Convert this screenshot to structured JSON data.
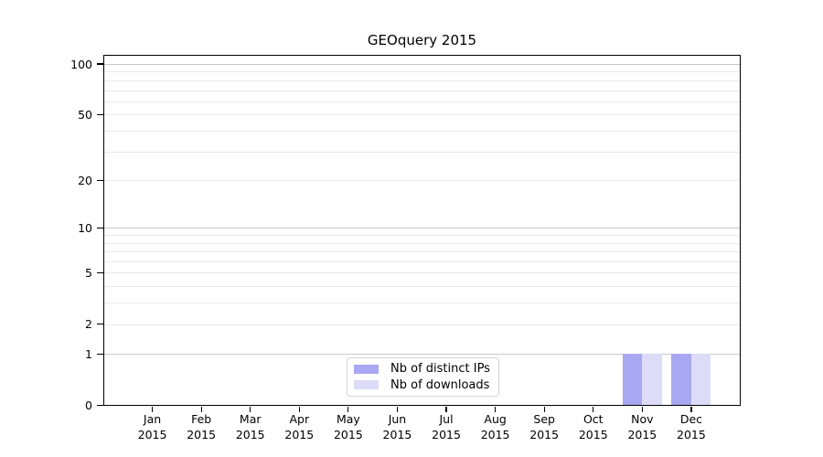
{
  "chart_data": {
    "type": "bar",
    "title": "GEOquery 2015",
    "x_year": "2015",
    "categories": [
      "Jan",
      "Feb",
      "Mar",
      "Apr",
      "May",
      "Jun",
      "Jul",
      "Aug",
      "Sep",
      "Oct",
      "Nov",
      "Dec"
    ],
    "series": [
      {
        "name": "Nb of distinct IPs",
        "color": "#a8a8f2",
        "values": [
          0,
          0,
          0,
          0,
          0,
          0,
          0,
          0,
          0,
          0,
          1,
          1
        ]
      },
      {
        "name": "Nb of downloads",
        "color": "#dcdcf8",
        "values": [
          0,
          0,
          0,
          0,
          0,
          0,
          0,
          0,
          0,
          0,
          1,
          1
        ]
      }
    ],
    "y_axis": {
      "scale": "log1p",
      "major_ticks": [
        0,
        1,
        2,
        5,
        10,
        20,
        50,
        100
      ],
      "minor_ticks": [
        3,
        4,
        6,
        7,
        8,
        9,
        30,
        40,
        60,
        70,
        80,
        90
      ],
      "emphasized_gridlines": [
        1,
        10,
        100
      ],
      "ylim": [
        0,
        113
      ]
    },
    "x_axis": {
      "gridlines": false
    },
    "legend": {
      "position": "bottom-center"
    },
    "grid": "horizontal-only",
    "colors": {
      "major_grid": "#c8c8c8",
      "minor_grid": "#e9e9e9",
      "spine": "#000000",
      "background": "#ffffff"
    }
  }
}
